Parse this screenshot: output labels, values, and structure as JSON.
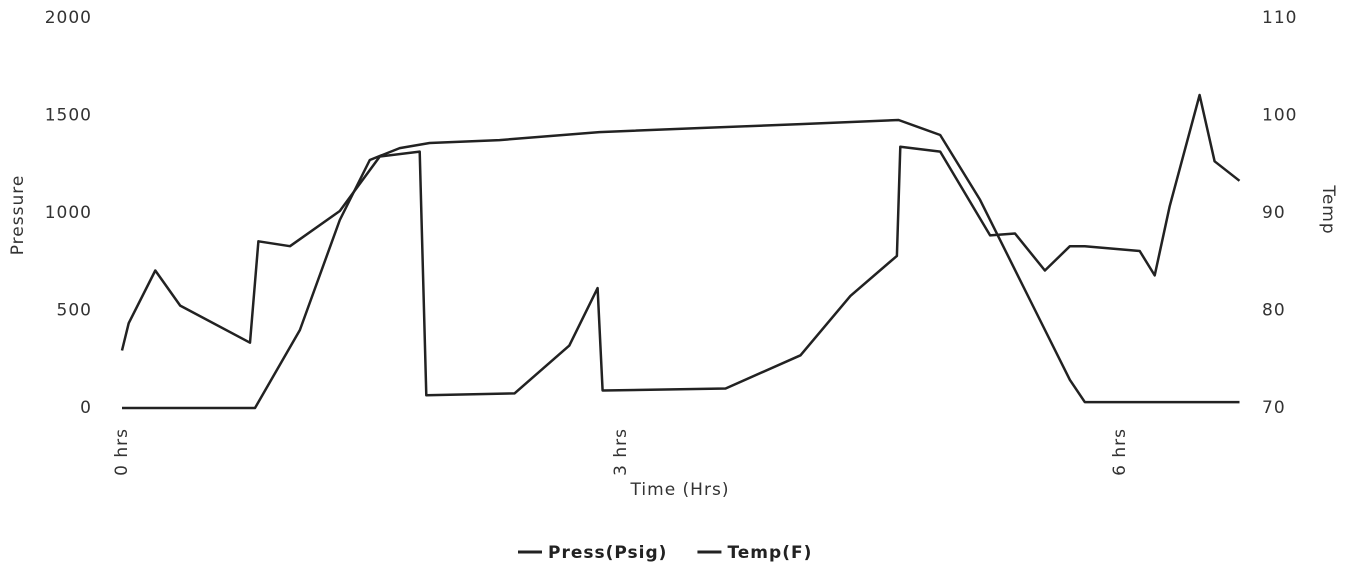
{
  "chart_data": {
    "type": "line",
    "x_label": "Time (Hrs)",
    "y_label": "Pressure",
    "y2_label": "Temp",
    "xlim": [
      0,
      6.72
    ],
    "xticks": [
      {
        "value": 0,
        "label": "0 hrs"
      },
      {
        "value": 3,
        "label": "3 hrs"
      },
      {
        "value": 6,
        "label": "6 hrs"
      }
    ],
    "ylim": [
      0,
      2000
    ],
    "yticks": [
      0,
      500,
      1000,
      1500,
      2000
    ],
    "y2lim": [
      70,
      110
    ],
    "y2ticks": [
      70,
      80,
      90,
      100,
      110
    ],
    "legend": "bottom",
    "series": [
      {
        "name": "Press(Psig)",
        "color": "#222222",
        "x": [
          0,
          0.8,
          1.07,
          1.31,
          1.49,
          1.67,
          1.85,
          2.27,
          2.87,
          3.48,
          4.08,
          4.67,
          4.92,
          5.16,
          5.46,
          5.7,
          5.79,
          6.72
        ],
        "values": [
          0,
          0,
          400,
          964,
          1272,
          1333,
          1359,
          1374,
          1415,
          1436,
          1456,
          1477,
          1400,
          1067,
          554,
          144,
          30,
          30
        ]
      },
      {
        "name": "Temp(F)",
        "color": "#222222",
        "axis": "y2",
        "x": [
          0,
          0.04,
          0.2,
          0.35,
          0.77,
          0.82,
          1.01,
          1.31,
          1.55,
          1.79,
          1.83,
          2.36,
          2.69,
          2.86,
          2.89,
          3.63,
          4.08,
          4.38,
          4.66,
          4.68,
          4.92,
          5.22,
          5.37,
          5.55,
          5.7,
          5.79,
          6.12,
          6.21,
          6.3,
          6.48,
          6.57,
          6.72
        ],
        "values": [
          75.9,
          78.7,
          84.1,
          80.5,
          76.7,
          87.1,
          86.6,
          90.2,
          95.8,
          96.3,
          71.3,
          71.5,
          76.4,
          82.3,
          71.8,
          72.0,
          75.4,
          81.5,
          85.6,
          96.8,
          96.3,
          87.7,
          87.9,
          84.1,
          86.6,
          86.6,
          86.1,
          83.6,
          90.7,
          102.1,
          95.3,
          93.3
        ]
      }
    ]
  }
}
